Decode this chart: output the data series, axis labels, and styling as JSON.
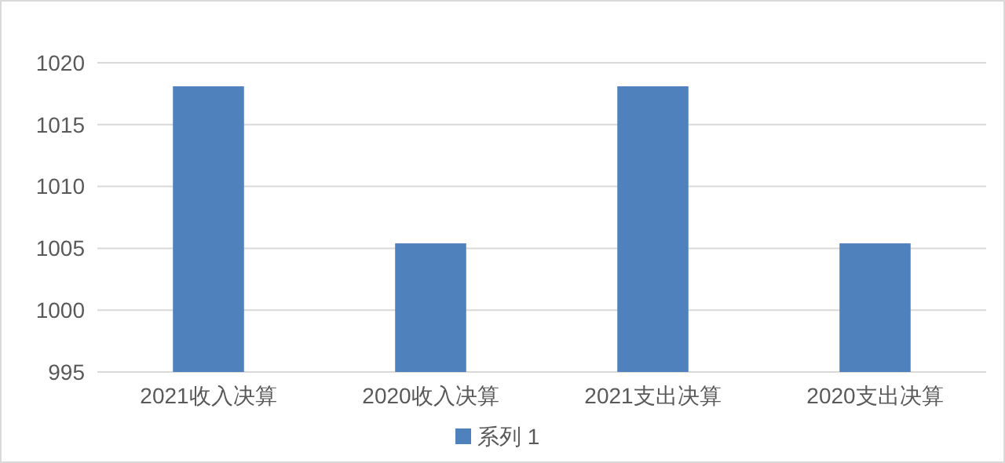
{
  "chart_data": {
    "type": "bar",
    "categories": [
      "2021收入决算",
      "2020收入决算",
      "2021支出决算",
      "2020支出决算"
    ],
    "series": [
      {
        "name": "系列 1",
        "color": "#4f81bd",
        "values": [
          1018.1,
          1005.4,
          1018.1,
          1005.4
        ]
      }
    ],
    "ylim": [
      995,
      1020
    ],
    "yticks": [
      995,
      1000,
      1005,
      1010,
      1015,
      1020
    ],
    "grid": "y",
    "legend": "bottom"
  }
}
